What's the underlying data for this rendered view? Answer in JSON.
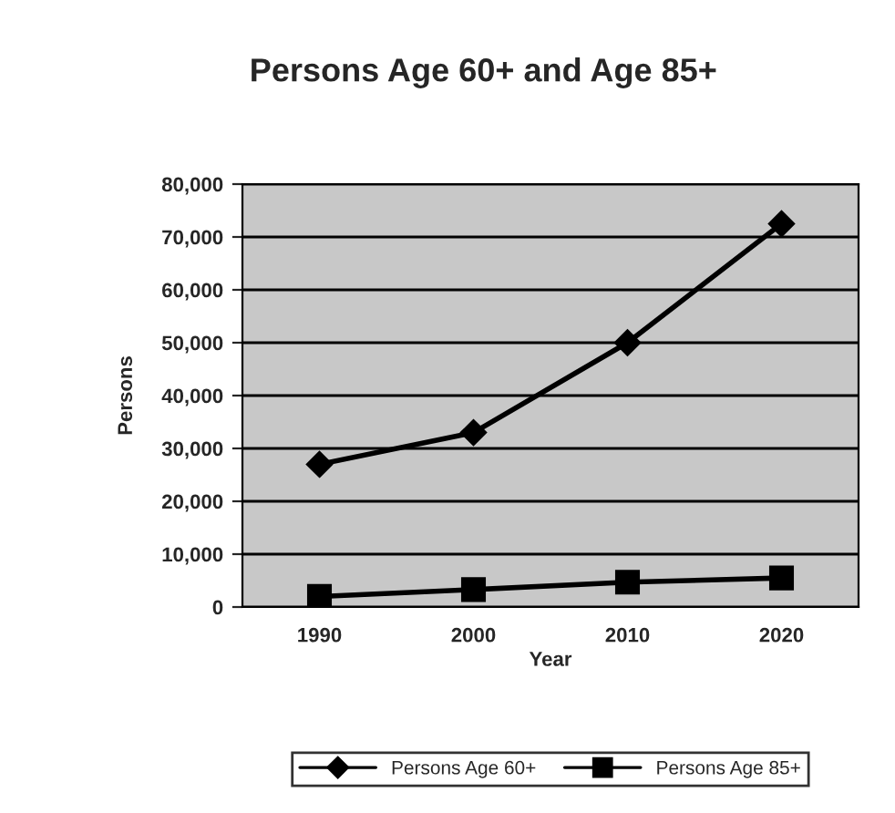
{
  "chart_data": {
    "type": "line",
    "title": "Persons Age 60+ and Age 85+",
    "xlabel": "Year",
    "ylabel": "Persons",
    "categories": [
      "1990",
      "2000",
      "2010",
      "2020"
    ],
    "series": [
      {
        "name": "Persons Age 60+",
        "color": "#000000",
        "marker": "diamond",
        "values": [
          27000,
          33000,
          50000,
          72500
        ]
      },
      {
        "name": "Persons Age 85+",
        "color": "#000000",
        "marker": "square",
        "values": [
          2000,
          3300,
          4700,
          5500
        ]
      }
    ],
    "ylim": [
      0,
      80000
    ],
    "yticks": [
      {
        "value": 0,
        "label": "0"
      },
      {
        "value": 10000,
        "label": "10,000"
      },
      {
        "value": 20000,
        "label": "20,000"
      },
      {
        "value": 30000,
        "label": "30,000"
      },
      {
        "value": 40000,
        "label": "40,000"
      },
      {
        "value": 50000,
        "label": "50,000"
      },
      {
        "value": 60000,
        "label": "60,000"
      },
      {
        "value": 70000,
        "label": "70,000"
      },
      {
        "value": 80000,
        "label": "80,000"
      }
    ],
    "grid": "y",
    "legend": "bottom",
    "line_style": "solid"
  }
}
